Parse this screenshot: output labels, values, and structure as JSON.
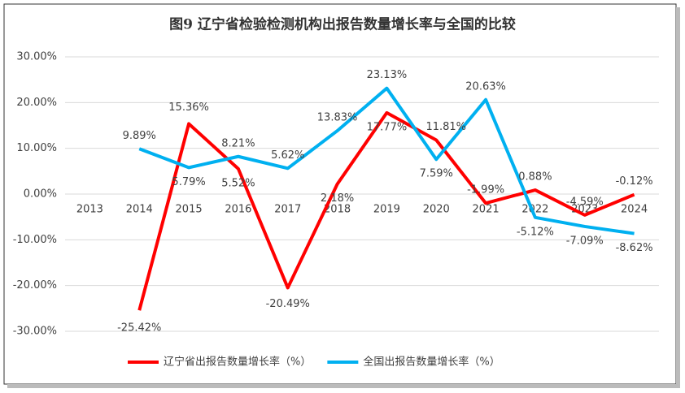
{
  "chart_data": {
    "type": "line",
    "title": "图9  辽宁省检验检测机构出报告数量增长率与全国的比较",
    "categories": [
      "2013",
      "2014",
      "2015",
      "2016",
      "2017",
      "2018",
      "2019",
      "2020",
      "2021",
      "2022",
      "2023",
      "2024"
    ],
    "series": [
      {
        "name": "辽宁省出报告数量增长率（%）",
        "color": "#ff0000",
        "values": [
          null,
          -25.42,
          15.36,
          5.52,
          -20.49,
          2.18,
          17.77,
          11.81,
          -1.99,
          0.88,
          -4.59,
          -0.12
        ],
        "value_labels": [
          null,
          "-25.42%",
          "15.36%",
          "5.52%",
          "-20.49%",
          "2.18%",
          "17.77%",
          "11.81%",
          "-1.99%",
          "0.88%",
          "-4.59%",
          "-0.12%"
        ]
      },
      {
        "name": "全国出报告数量增长率（%）",
        "color": "#00b0f0",
        "values": [
          null,
          9.89,
          5.79,
          8.21,
          5.62,
          13.83,
          23.13,
          7.59,
          20.63,
          -5.12,
          -7.09,
          -8.62
        ],
        "value_labels": [
          null,
          "9.89%",
          "5.79%",
          "8.21%",
          "5.62%",
          "13.83%",
          "23.13%",
          "7.59%",
          "20.63%",
          "-5.12%",
          "-7.09%",
          "-8.62%"
        ]
      }
    ],
    "ylim": [
      -30,
      30
    ],
    "yticks": [
      {
        "value": -30,
        "label": "-30.00%"
      },
      {
        "value": -20,
        "label": "-20.00%"
      },
      {
        "value": -10,
        "label": "-10.00%"
      },
      {
        "value": 0,
        "label": "0.00%"
      },
      {
        "value": 10,
        "label": "10.00%"
      },
      {
        "value": 20,
        "label": "20.00%"
      },
      {
        "value": 30,
        "label": "30.00%"
      }
    ],
    "grid": true,
    "legend": "bottom"
  }
}
